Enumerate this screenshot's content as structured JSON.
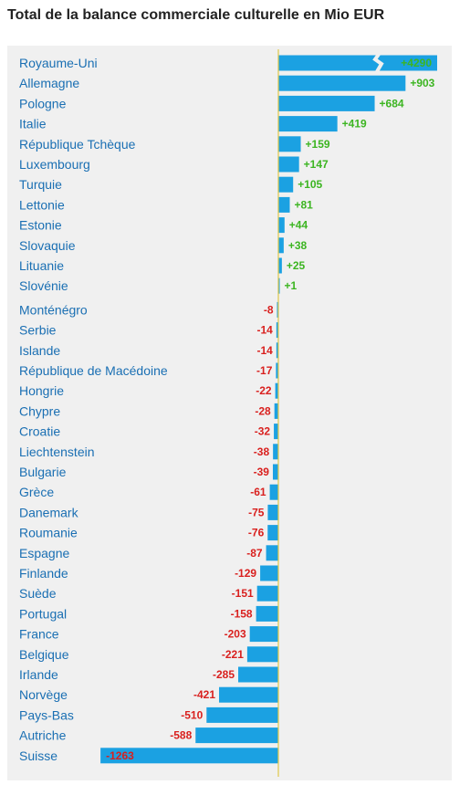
{
  "title": "Total de la balance commerciale culturelle en Mio EUR",
  "colors": {
    "bar": "#1ba1e2",
    "axis": "#e0c84a",
    "label": "#1a6fb3",
    "positive": "#3cb521",
    "negative": "#d9201e",
    "panel": "#f0f0f0"
  },
  "chart_data": {
    "type": "bar",
    "orientation": "horizontal",
    "broken_bar": "Royaume-Uni",
    "categories": [
      "Royaume-Uni",
      "Allemagne",
      "Pologne",
      "Italie",
      "République Tchèque",
      "Luxembourg",
      "Turquie",
      "Lettonie",
      "Estonie",
      "Slovaquie",
      "Lituanie",
      "Slovénie",
      "Monténégro",
      "Serbie",
      "Islande",
      "République de Macédoine",
      "Hongrie",
      "Chypre",
      "Croatie",
      "Liechtenstein",
      "Bulgarie",
      "Grèce",
      "Danemark",
      "Roumanie",
      "Espagne",
      "Finlande",
      "Suède",
      "Portugal",
      "France",
      "Belgique",
      "Irlande",
      "Norvège",
      "Pays-Bas",
      "Autriche",
      "Suisse"
    ],
    "values": [
      4290,
      903,
      684,
      419,
      159,
      147,
      105,
      81,
      44,
      38,
      25,
      1,
      -8,
      -14,
      -14,
      -17,
      -22,
      -28,
      -32,
      -38,
      -39,
      -61,
      -75,
      -76,
      -87,
      -129,
      -151,
      -158,
      -203,
      -221,
      -285,
      -421,
      -510,
      -588,
      -1263
    ],
    "value_labels": [
      "+4290",
      "+903",
      "+684",
      "+419",
      "+159",
      "+147",
      "+105",
      "+81",
      "+44",
      "+38",
      "+25",
      "+1",
      "-8",
      "-14",
      "-14",
      "-17",
      "-22",
      "-28",
      "-32",
      "-38",
      "-39",
      "-61",
      "-75",
      "-76",
      "-87",
      "-129",
      "-151",
      "-158",
      "-203",
      "-221",
      "-285",
      "-421",
      "-510",
      "-588",
      "-1263"
    ]
  }
}
